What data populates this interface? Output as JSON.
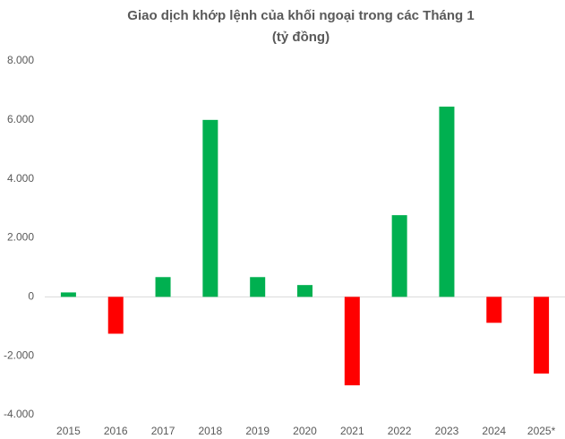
{
  "chart_data": {
    "type": "bar",
    "title": "Giao dịch khớp lệnh của khối ngoại trong các Tháng 1",
    "subtitle": "(tỷ đồng)",
    "categories": [
      "2015",
      "2016",
      "2017",
      "2018",
      "2019",
      "2020",
      "2021",
      "2022",
      "2023",
      "2024",
      "2025*"
    ],
    "values": [
      150,
      -1250,
      670,
      6000,
      670,
      400,
      -3000,
      2770,
      6450,
      -880,
      -2600
    ],
    "positive_color": "#00b050",
    "negative_color": "#ff0000",
    "ylim": [
      -4000,
      8000
    ],
    "yticks": [
      {
        "value": -4000,
        "label": "-4.000"
      },
      {
        "value": -2000,
        "label": "-2.000"
      },
      0,
      {
        "value": 2000,
        "label": "2.000"
      },
      {
        "value": 4000,
        "label": "4.000"
      },
      {
        "value": 6000,
        "label": "6.000"
      },
      {
        "value": 8000,
        "label": "8.000"
      }
    ],
    "grid": false
  }
}
